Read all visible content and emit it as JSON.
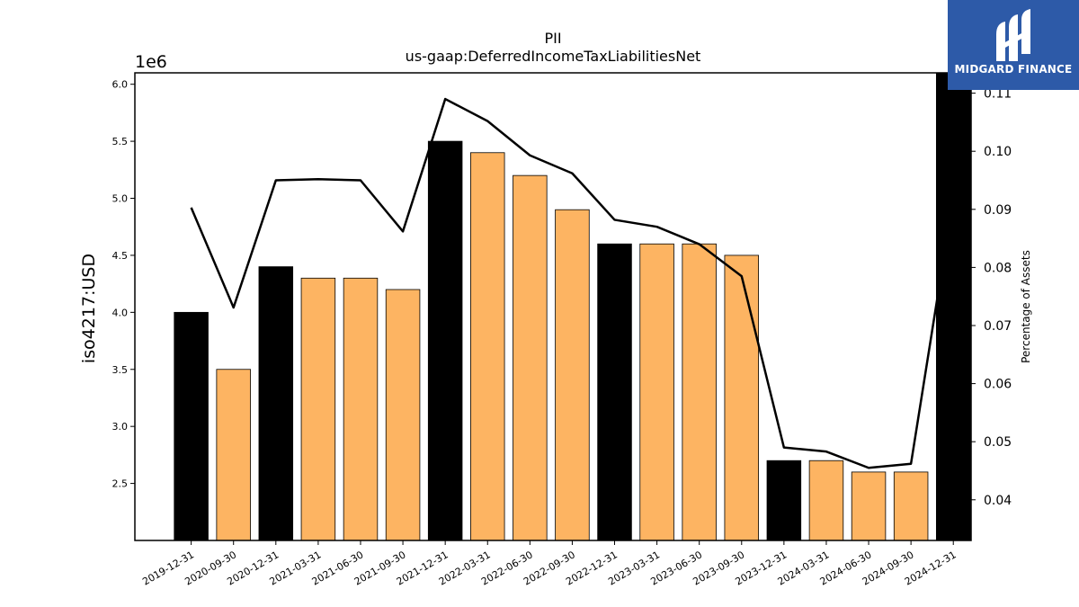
{
  "chart_data": {
    "type": "bar",
    "title": "PII",
    "subtitle": "us-gaap:DeferredIncomeTaxLiabilitiesNet",
    "ylabel": "iso4217:USD",
    "y_exponent_label": "1e6",
    "y2label": "Percentage of Assets",
    "categories": [
      "2019-12-31",
      "2020-09-30",
      "2020-12-31",
      "2021-03-31",
      "2021-06-30",
      "2021-09-30",
      "2021-12-31",
      "2022-03-31",
      "2022-06-30",
      "2022-09-30",
      "2022-12-31",
      "2023-03-31",
      "2023-06-30",
      "2023-09-30",
      "2023-12-31",
      "2024-03-31",
      "2024-06-30",
      "2024-09-30",
      "2024-12-31"
    ],
    "series": [
      {
        "type": "bar",
        "values": [
          4000000,
          3500000,
          4400000,
          4300000,
          4300000,
          4200000,
          5500000,
          5400000,
          5200000,
          4900000,
          4600000,
          4600000,
          4600000,
          4500000,
          2700000,
          2700000,
          2600000,
          2600000,
          6100000
        ],
        "colors": [
          "#000000",
          "#fdb462",
          "#000000",
          "#fdb462",
          "#fdb462",
          "#fdb462",
          "#000000",
          "#fdb462",
          "#fdb462",
          "#fdb462",
          "#000000",
          "#fdb462",
          "#fdb462",
          "#fdb462",
          "#000000",
          "#fdb462",
          "#fdb462",
          "#fdb462",
          "#000000"
        ]
      },
      {
        "type": "line",
        "axis": "right",
        "color": "#000000",
        "values": [
          0.0903,
          0.0731,
          0.095,
          0.0952,
          0.095,
          0.0862,
          0.109,
          0.1052,
          0.0993,
          0.0962,
          0.0882,
          0.087,
          0.084,
          0.0785,
          0.049,
          0.0483,
          0.0455,
          0.0462,
          0.092
        ]
      }
    ],
    "ylim": [
      2000000,
      6100000
    ],
    "y_ticks": [
      2500000,
      3000000,
      3500000,
      4000000,
      4500000,
      5000000,
      5500000,
      6000000
    ],
    "y_tick_labels": [
      "2.5",
      "3.0",
      "3.5",
      "4.0",
      "4.5",
      "5.0",
      "5.5",
      "6.0"
    ],
    "y2lim": [
      0.033,
      0.1135
    ],
    "y2_ticks": [
      0.04,
      0.05,
      0.06,
      0.07,
      0.08,
      0.09,
      0.1,
      0.11
    ],
    "y2_tick_labels": [
      "0.04",
      "0.05",
      "0.06",
      "0.07",
      "0.08",
      "0.09",
      "0.10",
      "0.11"
    ],
    "grid": false
  },
  "logo": {
    "text": "MIDGARD FINANCE"
  }
}
